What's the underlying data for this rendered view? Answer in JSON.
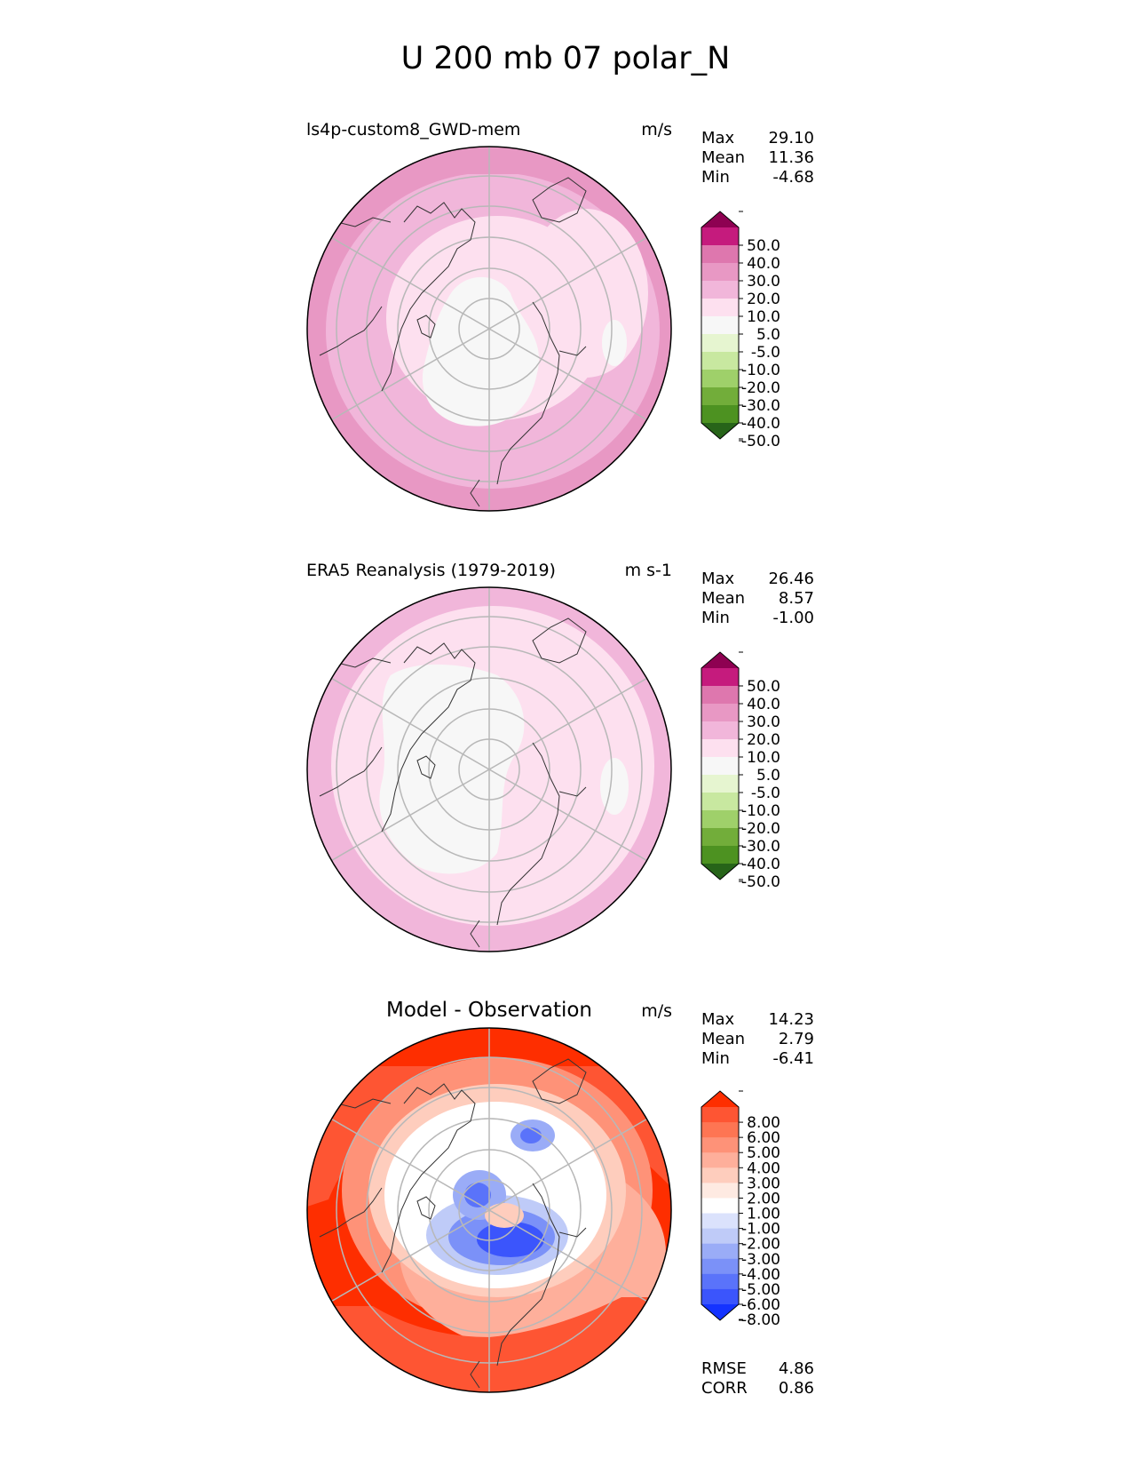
{
  "figure": {
    "title": "U 200 mb 07 polar_N"
  },
  "panels": [
    {
      "id": "model",
      "title": "ls4p-custom8_GWD-mem",
      "units": "m/s",
      "stats": [
        {
          "label": "Max",
          "value": "29.10"
        },
        {
          "label": "Mean",
          "value": "11.36"
        },
        {
          "label": "Min",
          "value": "-4.68"
        }
      ],
      "colorbar": {
        "labels": [
          "50.0",
          "40.0",
          "30.0",
          "20.0",
          "10.0",
          "5.0",
          "-5.0",
          "-10.0",
          "-20.0",
          "-30.0",
          "-40.0",
          "-50.0"
        ],
        "colors": [
          "#8e0152",
          "#c51b7d",
          "#de77ae",
          "#e898c4",
          "#f1b6da",
          "#fde0ef",
          "#f7f7f7",
          "#e6f5d0",
          "#c8e8a0",
          "#9fd06a",
          "#72ad3a",
          "#4d9221",
          "#276419"
        ]
      },
      "map_fill": [
        {
          "band": "outer",
          "color": "#e898c4"
        },
        {
          "band": "mid-outer",
          "color": "#f1b6da"
        },
        {
          "band": "mid",
          "color": "#fde0ef"
        },
        {
          "band": "inner",
          "color": "#f7f7f7"
        }
      ]
    },
    {
      "id": "obs",
      "title": "ERA5 Reanalysis (1979-2019)",
      "units": "m s-1",
      "stats": [
        {
          "label": "Max",
          "value": "26.46"
        },
        {
          "label": "Mean",
          "value": "8.57"
        },
        {
          "label": "Min",
          "value": "-1.00"
        }
      ],
      "colorbar": {
        "labels": [
          "50.0",
          "40.0",
          "30.0",
          "20.0",
          "10.0",
          "5.0",
          "-5.0",
          "-10.0",
          "-20.0",
          "-30.0",
          "-40.0",
          "-50.0"
        ],
        "colors": [
          "#8e0152",
          "#c51b7d",
          "#de77ae",
          "#e898c4",
          "#f1b6da",
          "#fde0ef",
          "#f7f7f7",
          "#e6f5d0",
          "#c8e8a0",
          "#9fd06a",
          "#72ad3a",
          "#4d9221",
          "#276419"
        ]
      },
      "map_fill": [
        {
          "band": "outer",
          "color": "#f1b6da"
        },
        {
          "band": "mid",
          "color": "#fde0ef"
        },
        {
          "band": "inner",
          "color": "#f7f7f7"
        }
      ]
    },
    {
      "id": "diff",
      "title": "Model - Observation",
      "units": "m/s",
      "stats": [
        {
          "label": "Max",
          "value": "14.23"
        },
        {
          "label": "Mean",
          "value": "2.79"
        },
        {
          "label": "Min",
          "value": "-6.41"
        }
      ],
      "colorbar": {
        "labels": [
          "8.00",
          "6.00",
          "5.00",
          "4.00",
          "3.00",
          "2.00",
          "1.00",
          "-1.00",
          "-2.00",
          "-3.00",
          "-4.00",
          "-5.00",
          "-6.00",
          "-8.00"
        ],
        "colors": [
          "#fe2e00",
          "#fe5533",
          "#fe7553",
          "#fe9278",
          "#feaf9b",
          "#fecdbd",
          "#feeae2",
          "#ffffff",
          "#dbe2fc",
          "#bfcbf8",
          "#9aacf7",
          "#7b91f8",
          "#5a73fa",
          "#3b55fc",
          "#1433ff"
        ]
      },
      "extra_stats": [
        {
          "label": "RMSE",
          "value": "4.86"
        },
        {
          "label": "CORR",
          "value": "0.86"
        }
      ]
    }
  ],
  "chart_data": [
    {
      "type": "heatmap",
      "title": "ls4p-custom8_GWD-mem",
      "projection": "north polar stereographic",
      "field": "U 200 mb",
      "month": "07",
      "units": "m/s",
      "max": 29.1,
      "mean": 11.36,
      "min": -4.68,
      "levels": [
        -50,
        -40,
        -30,
        -20,
        -10,
        -5,
        5,
        10,
        20,
        30,
        40,
        50
      ]
    },
    {
      "type": "heatmap",
      "title": "ERA5 Reanalysis (1979-2019)",
      "projection": "north polar stereographic",
      "field": "U 200 mb",
      "month": "07",
      "units": "m s-1",
      "max": 26.46,
      "mean": 8.57,
      "min": -1.0,
      "levels": [
        -50,
        -40,
        -30,
        -20,
        -10,
        -5,
        5,
        10,
        20,
        30,
        40,
        50
      ]
    },
    {
      "type": "heatmap",
      "title": "Model - Observation",
      "projection": "north polar stereographic",
      "units": "m/s",
      "max": 14.23,
      "mean": 2.79,
      "min": -6.41,
      "rmse": 4.86,
      "corr": 0.86,
      "levels": [
        -8,
        -6,
        -5,
        -4,
        -3,
        -2,
        -1,
        1,
        2,
        3,
        4,
        5,
        6,
        8
      ]
    }
  ]
}
